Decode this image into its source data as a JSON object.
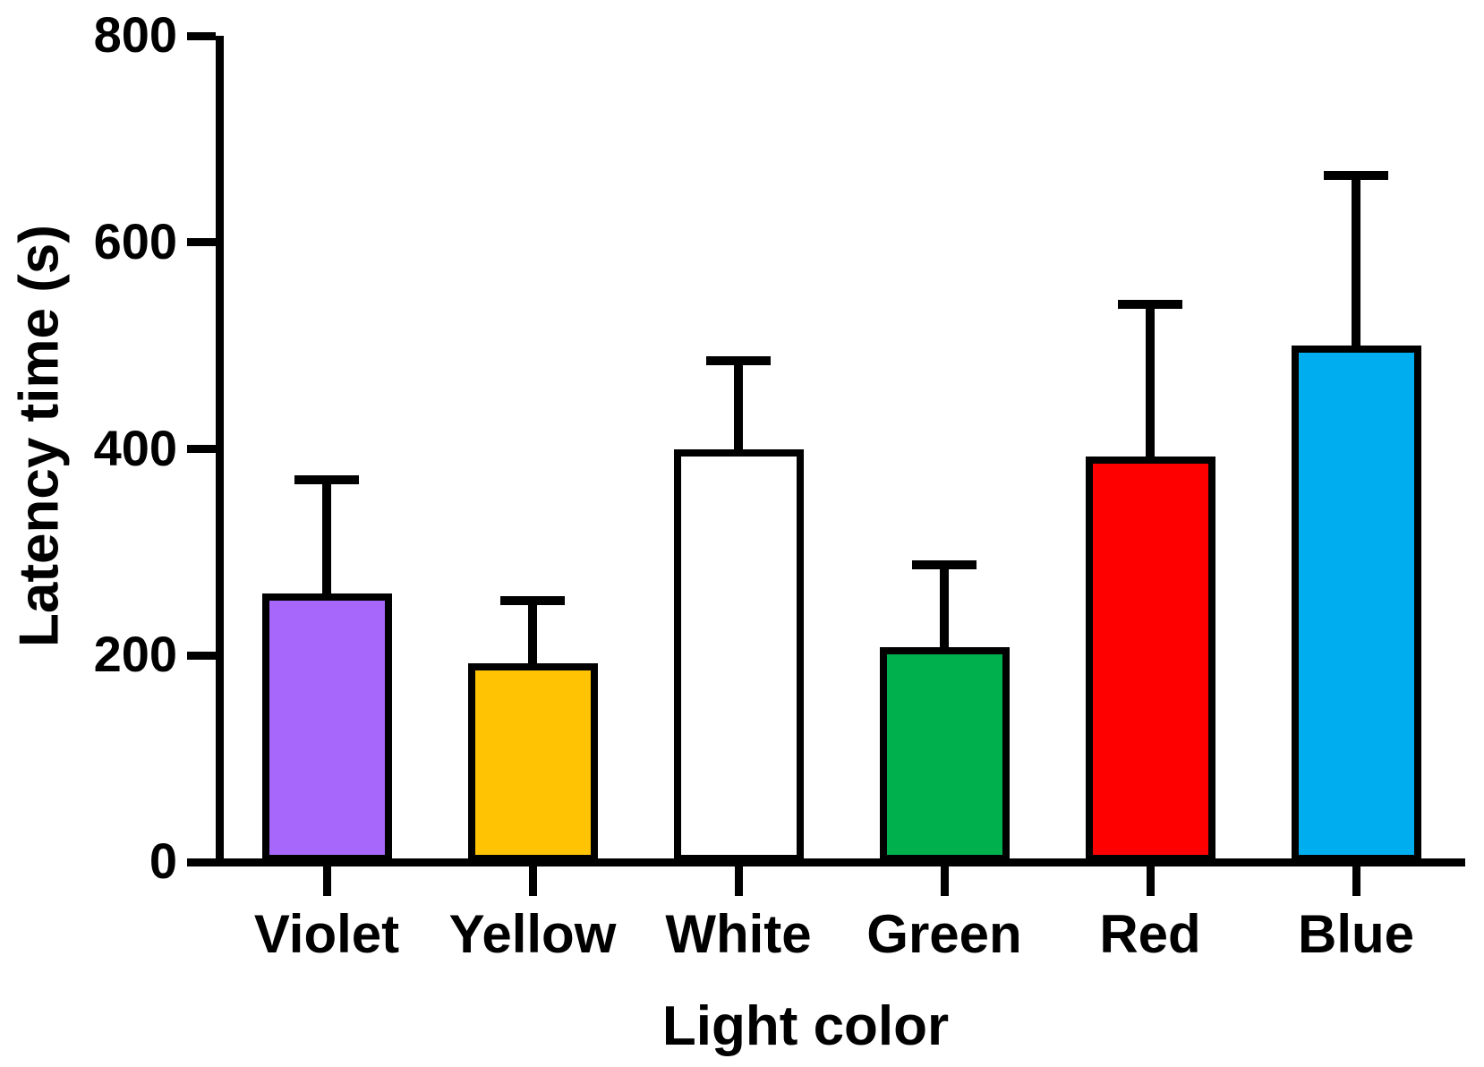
{
  "figure": {
    "background": "#FFFFFF",
    "axis_color": "#000000",
    "text_color": "#000000"
  },
  "chart_data": {
    "type": "bar",
    "title": "",
    "xlabel": "Light color",
    "ylabel": "Latency time (s)",
    "categories": [
      "Violet",
      "Yellow",
      "White",
      "Green",
      "Red",
      "Blue"
    ],
    "values": [
      260,
      192,
      400,
      208,
      393,
      500
    ],
    "errors_plus": [
      110,
      61,
      85,
      80,
      147,
      165
    ],
    "error_bar_direction": "up",
    "bar_colors": [
      "#A767FA",
      "#FFC303",
      "#FFFFFF",
      "#00B04D",
      "#FE0000",
      "#00AEEF"
    ],
    "bar_border_color": "#000000",
    "ylim": [
      0,
      800
    ],
    "yticks": [
      0,
      200,
      400,
      600,
      800
    ],
    "grid": false,
    "legend": null
  }
}
